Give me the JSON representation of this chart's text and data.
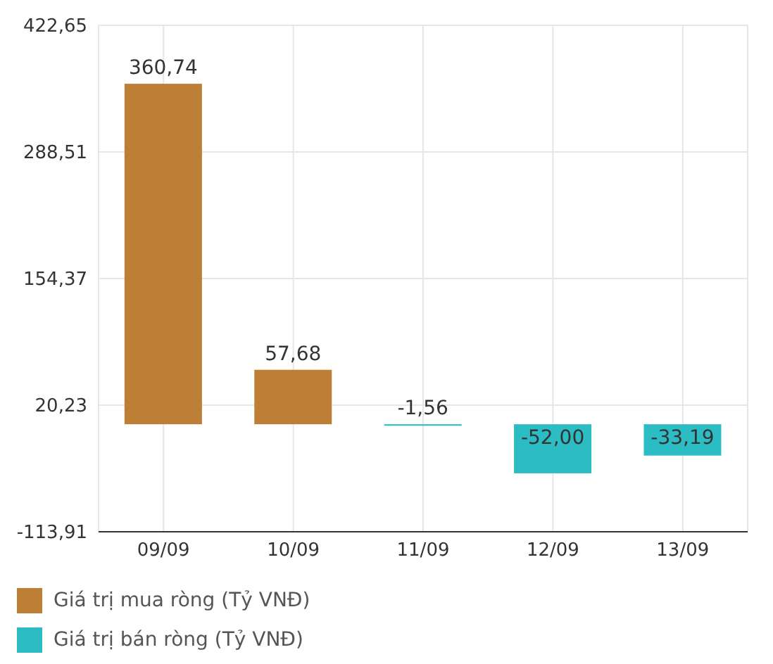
{
  "chart_data": {
    "type": "bar",
    "categories": [
      "09/09",
      "10/09",
      "11/09",
      "12/09",
      "13/09"
    ],
    "series": [
      {
        "name": "Giá trị mua ròng (Tỷ VNĐ)",
        "color": "#bd7f35",
        "values": [
          360.74,
          57.68,
          null,
          null,
          null
        ],
        "value_labels": [
          "360,74",
          "57,68",
          null,
          null,
          null
        ]
      },
      {
        "name": "Giá trị bán ròng (Tỷ VNĐ)",
        "color": "#2cbcc3",
        "values": [
          null,
          null,
          -1.56,
          -52.0,
          -33.19
        ],
        "value_labels": [
          null,
          null,
          "-1,56",
          "-52,00",
          "-33,19"
        ]
      }
    ],
    "stacked": true,
    "ylim": [
      -113.91,
      422.65
    ],
    "yticks": [
      {
        "value": -113.91,
        "label": "-113,91"
      },
      {
        "value": 20.23,
        "label": "20,23"
      },
      {
        "value": 154.37,
        "label": "154,37"
      },
      {
        "value": 288.51,
        "label": "288,51"
      },
      {
        "value": 422.65,
        "label": "422,65"
      }
    ],
    "grid": true,
    "legend": "bottom"
  }
}
